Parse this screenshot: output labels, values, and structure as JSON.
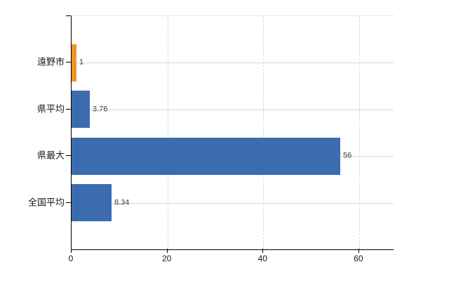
{
  "chart_data": {
    "type": "bar",
    "orientation": "horizontal",
    "title": "",
    "xlabel": "",
    "ylabel": "",
    "categories": [
      "遠野市",
      "県平均",
      "県最大",
      "全国平均"
    ],
    "values": [
      1,
      3.76,
      56,
      8.34
    ],
    "value_labels": [
      "1",
      "3.76",
      "56",
      "8.34"
    ],
    "bar_colors": [
      "#ef9428",
      "#3c6cb0",
      "#3c6cb0",
      "#3c6cb0"
    ],
    "x_ticks": [
      0,
      20,
      40,
      60
    ],
    "x_tick_labels": [
      "0",
      "20",
      "40",
      "60"
    ],
    "xlim": [
      0,
      67.2
    ],
    "grid": "vertical dashed gridlines at x ticks, solid horizontal gridline at each category center, dashed top border",
    "legend": "none"
  },
  "colors": {
    "background": "#ffffff",
    "highlight_bar": "#ef9428",
    "default_bar": "#3c6cb0",
    "axis": "#000000",
    "vertical_gridline": "#d8d8d8",
    "category_gridline": "#d6d6d6",
    "value_label_text": "#3c3c3c",
    "tick_label_text": "#1a1a1a"
  }
}
